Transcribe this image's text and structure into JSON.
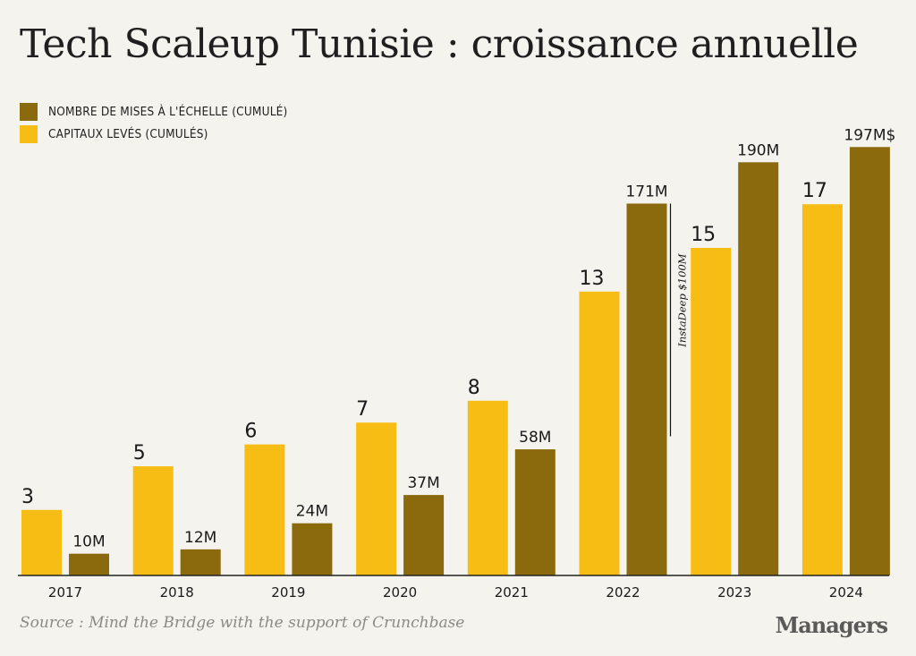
{
  "title": "Tech Scaleup Tunisie : croissance annuelle",
  "legend": [
    {
      "label": "NOMBRE DE MISES À L'ÉCHELLE (CUMULÉ)",
      "color": "#8b6a0e"
    },
    {
      "label": "CAPITAUX LEVÉS (CUMULÉS)",
      "color": "#f8bd14"
    }
  ],
  "source": "Source : Mind the Bridge with the support of Crunchbase",
  "brand": "Managers",
  "chart_data": {
    "type": "bar",
    "categories": [
      "2017",
      "2018",
      "2019",
      "2020",
      "2021",
      "2022",
      "2023",
      "2024"
    ],
    "series": [
      {
        "color": "#f8bd14",
        "values": [
          3,
          5,
          6,
          7,
          8,
          13,
          15,
          17
        ],
        "labels": [
          "3",
          "5",
          "6",
          "7",
          "8",
          "13",
          "15",
          "17"
        ]
      },
      {
        "color": "#8b6a0e",
        "values": [
          10,
          12,
          24,
          37,
          58,
          171,
          190,
          197
        ],
        "labels": [
          "10M",
          "12M",
          "24M",
          "37M",
          "58M",
          "171M",
          "190M",
          "197M$"
        ]
      }
    ],
    "annotation": {
      "category": "2022",
      "text": "InstaDeep $100M",
      "value": 100
    },
    "grid": false,
    "legend_position": "top-left"
  }
}
